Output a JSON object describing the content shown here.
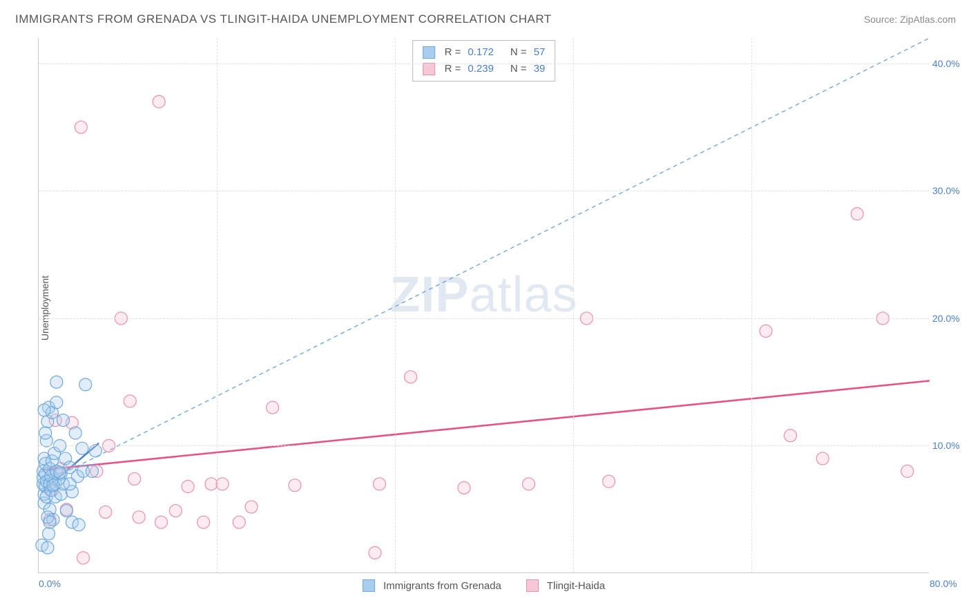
{
  "title": "IMMIGRANTS FROM GRENADA VS TLINGIT-HAIDA UNEMPLOYMENT CORRELATION CHART",
  "source_label": "Source:",
  "source_name": "ZipAtlas.com",
  "y_axis_label": "Unemployment",
  "watermark": {
    "zip": "ZIP",
    "atlas": "atlas"
  },
  "chart": {
    "type": "scatter",
    "background_color": "#ffffff",
    "grid_color": "#e0e0e0",
    "axis_color": "#cccccc",
    "tick_color": "#4a7ec9",
    "xlim": [
      0,
      80
    ],
    "ylim": [
      0,
      42
    ],
    "x_ticks": [
      0,
      80
    ],
    "x_tick_labels": [
      "0.0%",
      "80.0%"
    ],
    "x_grid_positions": [
      16,
      32,
      48,
      64
    ],
    "y_ticks": [
      10,
      20,
      30,
      40
    ],
    "y_tick_labels": [
      "10.0%",
      "20.0%",
      "30.0%",
      "40.0%"
    ],
    "marker_radius": 9,
    "marker_stroke_width": 1.2,
    "marker_fill_opacity": 0.35,
    "series": [
      {
        "id": "grenada",
        "name": "Immigrants from Grenada",
        "color_fill": "#a9cdee",
        "color_stroke": "#6fa8dc",
        "swatch_fill": "#a9cdee",
        "swatch_border": "#6fa8dc",
        "R": "0.172",
        "N": "57",
        "trend": {
          "x1": 0.3,
          "y1": 6.4,
          "x2": 5.4,
          "y2": 10.2,
          "stroke": "#4a7ec9",
          "width": 2.4,
          "dash": "none"
        },
        "points": [
          [
            0.4,
            7.0
          ],
          [
            0.4,
            7.5
          ],
          [
            0.4,
            8.0
          ],
          [
            0.5,
            9.0
          ],
          [
            0.5,
            5.5
          ],
          [
            0.5,
            6.2
          ],
          [
            0.6,
            6.8
          ],
          [
            0.6,
            7.8
          ],
          [
            0.6,
            8.6
          ],
          [
            0.7,
            7.2
          ],
          [
            0.7,
            6.0
          ],
          [
            0.7,
            10.4
          ],
          [
            0.8,
            11.9
          ],
          [
            0.9,
            13.0
          ],
          [
            0.9,
            3.1
          ],
          [
            1.0,
            7.0
          ],
          [
            1.0,
            8.2
          ],
          [
            1.0,
            5.0
          ],
          [
            1.1,
            6.5
          ],
          [
            1.1,
            7.6
          ],
          [
            1.2,
            8.8
          ],
          [
            1.2,
            12.6
          ],
          [
            1.3,
            4.2
          ],
          [
            1.4,
            9.4
          ],
          [
            1.5,
            6.0
          ],
          [
            1.5,
            7.0
          ],
          [
            1.6,
            15.0
          ],
          [
            1.6,
            13.4
          ],
          [
            1.8,
            7.4
          ],
          [
            1.9,
            10.0
          ],
          [
            2.0,
            6.2
          ],
          [
            2.0,
            7.8
          ],
          [
            2.2,
            7.0
          ],
          [
            2.2,
            12.0
          ],
          [
            2.4,
            9.0
          ],
          [
            2.5,
            4.9
          ],
          [
            2.8,
            8.3
          ],
          [
            3.0,
            6.4
          ],
          [
            3.0,
            4.0
          ],
          [
            3.3,
            11.0
          ],
          [
            3.5,
            7.6
          ],
          [
            3.6,
            3.8
          ],
          [
            3.9,
            9.8
          ],
          [
            4.0,
            8.0
          ],
          [
            4.2,
            14.8
          ],
          [
            4.8,
            8.0
          ],
          [
            5.1,
            9.6
          ],
          [
            0.3,
            2.2
          ],
          [
            0.8,
            2.0
          ],
          [
            0.8,
            4.4
          ],
          [
            1.0,
            4.0
          ],
          [
            1.3,
            6.9
          ],
          [
            1.6,
            8.0
          ],
          [
            2.8,
            7.0
          ],
          [
            0.5,
            12.8
          ],
          [
            0.6,
            11.0
          ],
          [
            1.9,
            7.9
          ]
        ]
      },
      {
        "id": "tlingit",
        "name": "Tlingit-Haida",
        "color_fill": "#f6c7d4",
        "color_stroke": "#e98fab",
        "swatch_fill": "#f6c7d4",
        "swatch_border": "#e98fab",
        "R": "0.239",
        "N": "39",
        "trend": {
          "x1": 0.3,
          "y1": 8.1,
          "x2": 80,
          "y2": 15.1,
          "stroke": "#e55384",
          "width": 2.6,
          "dash": "none"
        },
        "points": [
          [
            1.2,
            6.5
          ],
          [
            1.5,
            12.0
          ],
          [
            2.5,
            5.0
          ],
          [
            3.0,
            11.8
          ],
          [
            3.8,
            35.0
          ],
          [
            5.2,
            8.0
          ],
          [
            6.0,
            4.8
          ],
          [
            6.3,
            10.0
          ],
          [
            7.4,
            20.0
          ],
          [
            8.2,
            13.5
          ],
          [
            8.6,
            7.4
          ],
          [
            9.0,
            4.4
          ],
          [
            10.8,
            37.0
          ],
          [
            11.0,
            4.0
          ],
          [
            12.3,
            4.9
          ],
          [
            13.4,
            6.8
          ],
          [
            14.8,
            4.0
          ],
          [
            15.5,
            7.0
          ],
          [
            16.5,
            7.0
          ],
          [
            18.0,
            4.0
          ],
          [
            19.1,
            5.2
          ],
          [
            21.0,
            13.0
          ],
          [
            23.0,
            6.9
          ],
          [
            30.2,
            1.6
          ],
          [
            30.6,
            7.0
          ],
          [
            33.4,
            15.4
          ],
          [
            38.2,
            6.7
          ],
          [
            44.0,
            7.0
          ],
          [
            49.2,
            20.0
          ],
          [
            51.2,
            7.2
          ],
          [
            65.3,
            19.0
          ],
          [
            67.5,
            10.8
          ],
          [
            70.4,
            9.0
          ],
          [
            73.5,
            28.2
          ],
          [
            75.8,
            20.0
          ],
          [
            78.0,
            8.0
          ],
          [
            1.0,
            4.2
          ],
          [
            4.0,
            1.2
          ],
          [
            2.0,
            8.2
          ]
        ]
      }
    ],
    "reference_line": {
      "x1": 0.3,
      "y1": 7.0,
      "x2": 80,
      "y2": 42,
      "stroke": "#6fa8dc",
      "width": 1.4,
      "dash": "6,5"
    }
  },
  "stat_legend": {
    "R_label": "R",
    "N_label": "N",
    "equals": "="
  }
}
